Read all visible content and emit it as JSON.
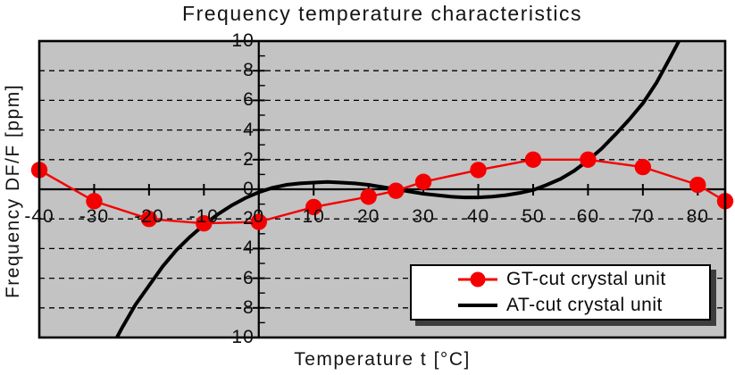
{
  "title": "Frequency temperature characteristics",
  "chart_data": {
    "type": "line",
    "title": "Frequency temperature characteristics",
    "xlabel": "Temperature t [°C]",
    "ylabel": "Frequency DF/F [ppm]",
    "xlim": [
      -40,
      85
    ],
    "ylim": [
      -10,
      10
    ],
    "x_tick_labels": [
      -40,
      -30,
      -20,
      -10,
      0,
      10,
      20,
      30,
      40,
      50,
      60,
      70,
      80
    ],
    "y_tick_labels": [
      10,
      8,
      6,
      4,
      2,
      0,
      -2,
      -4,
      -6,
      -8,
      -10
    ],
    "y_minor_tick_step": 1,
    "grid": "horizontal dashed lines every 2 ppm",
    "legend_position": "inside bottom-right",
    "colors": {
      "plot_background": "#c3c3c3",
      "grid_line": "#000000",
      "axis_line": "#000000",
      "gt_series": "#f40000",
      "at_series": "#000000",
      "legend_shadow": "#3d3d3d"
    },
    "series": [
      {
        "name": "GT-cut crystal unit",
        "color": "#f40000",
        "marker": "circle",
        "line_width": 2.4,
        "points": [
          [
            -40,
            1.3
          ],
          [
            -30,
            -0.8
          ],
          [
            -20,
            -2.0
          ],
          [
            -10,
            -2.3
          ],
          [
            0,
            -2.2
          ],
          [
            10,
            -1.2
          ],
          [
            20,
            -0.5
          ],
          [
            25,
            -0.1
          ],
          [
            30,
            0.5
          ],
          [
            40,
            1.3
          ],
          [
            50,
            2.0
          ],
          [
            60,
            2.0
          ],
          [
            70,
            1.5
          ],
          [
            80,
            0.3
          ],
          [
            85,
            -0.8
          ]
        ]
      },
      {
        "name": "AT-cut crystal unit",
        "color": "#000000",
        "marker": "none",
        "line_width": 4,
        "points": [
          [
            -27.5,
            -11.1
          ],
          [
            -26,
            -10.1
          ],
          [
            -25,
            -9.4
          ],
          [
            -22.5,
            -7.8
          ],
          [
            -20,
            -6.5
          ],
          [
            -17.5,
            -5.2
          ],
          [
            -15,
            -4.1
          ],
          [
            -12.5,
            -3.2
          ],
          [
            -10,
            -2.4
          ],
          [
            -7.5,
            -1.7
          ],
          [
            -5,
            -1.1
          ],
          [
            -2.5,
            -0.6
          ],
          [
            0,
            -0.2
          ],
          [
            2.5,
            0.1
          ],
          [
            5,
            0.3
          ],
          [
            7.5,
            0.4
          ],
          [
            10,
            0.45
          ],
          [
            12.5,
            0.5
          ],
          [
            15,
            0.45
          ],
          [
            17.5,
            0.4
          ],
          [
            20,
            0.3
          ],
          [
            22.5,
            0.15
          ],
          [
            25,
            0.0
          ],
          [
            27.5,
            -0.15
          ],
          [
            30,
            -0.3
          ],
          [
            32.5,
            -0.4
          ],
          [
            35,
            -0.5
          ],
          [
            37.5,
            -0.55
          ],
          [
            40,
            -0.55
          ],
          [
            42.5,
            -0.5
          ],
          [
            45,
            -0.4
          ],
          [
            47.5,
            -0.25
          ],
          [
            50,
            -0.05
          ],
          [
            52.5,
            0.3
          ],
          [
            55,
            0.7
          ],
          [
            57.5,
            1.25
          ],
          [
            60,
            1.95
          ],
          [
            62.5,
            2.75
          ],
          [
            65,
            3.7
          ],
          [
            67.5,
            4.7
          ],
          [
            70,
            5.8
          ],
          [
            72.5,
            7.2
          ],
          [
            75,
            8.9
          ],
          [
            77,
            10.3
          ],
          [
            78,
            11.0
          ]
        ]
      }
    ]
  }
}
